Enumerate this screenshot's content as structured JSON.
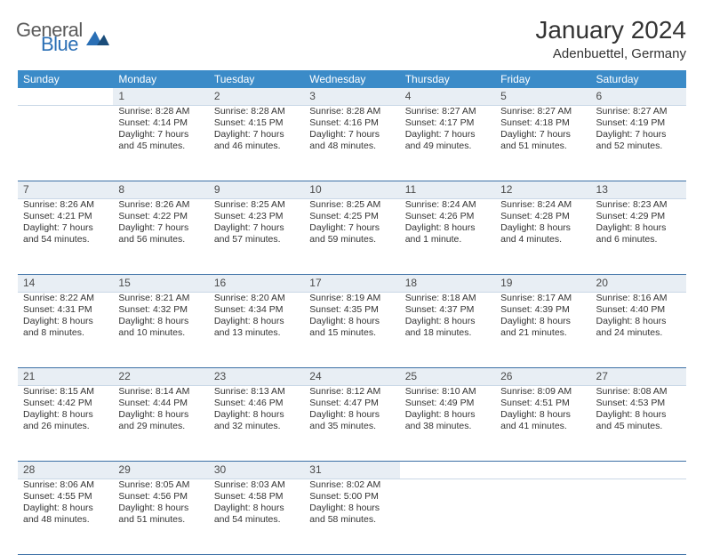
{
  "logo": {
    "word1": "General",
    "word2": "Blue",
    "color1": "#5a5a5a",
    "color2": "#2a6fb5"
  },
  "header": {
    "title": "January 2024",
    "location": "Adenbuettel, Germany"
  },
  "colors": {
    "header_bg": "#3b8bc8",
    "header_text": "#ffffff",
    "daynum_bg": "#e8eef4",
    "row_divider": "#3b6fa5",
    "cell_divider": "#c9d7e6",
    "text": "#333333"
  },
  "day_headers": [
    "Sunday",
    "Monday",
    "Tuesday",
    "Wednesday",
    "Thursday",
    "Friday",
    "Saturday"
  ],
  "weeks": [
    {
      "nums": [
        "",
        "1",
        "2",
        "3",
        "4",
        "5",
        "6"
      ],
      "cells": [
        [],
        [
          "Sunrise: 8:28 AM",
          "Sunset: 4:14 PM",
          "Daylight: 7 hours",
          "and 45 minutes."
        ],
        [
          "Sunrise: 8:28 AM",
          "Sunset: 4:15 PM",
          "Daylight: 7 hours",
          "and 46 minutes."
        ],
        [
          "Sunrise: 8:28 AM",
          "Sunset: 4:16 PM",
          "Daylight: 7 hours",
          "and 48 minutes."
        ],
        [
          "Sunrise: 8:27 AM",
          "Sunset: 4:17 PM",
          "Daylight: 7 hours",
          "and 49 minutes."
        ],
        [
          "Sunrise: 8:27 AM",
          "Sunset: 4:18 PM",
          "Daylight: 7 hours",
          "and 51 minutes."
        ],
        [
          "Sunrise: 8:27 AM",
          "Sunset: 4:19 PM",
          "Daylight: 7 hours",
          "and 52 minutes."
        ]
      ]
    },
    {
      "nums": [
        "7",
        "8",
        "9",
        "10",
        "11",
        "12",
        "13"
      ],
      "cells": [
        [
          "Sunrise: 8:26 AM",
          "Sunset: 4:21 PM",
          "Daylight: 7 hours",
          "and 54 minutes."
        ],
        [
          "Sunrise: 8:26 AM",
          "Sunset: 4:22 PM",
          "Daylight: 7 hours",
          "and 56 minutes."
        ],
        [
          "Sunrise: 8:25 AM",
          "Sunset: 4:23 PM",
          "Daylight: 7 hours",
          "and 57 minutes."
        ],
        [
          "Sunrise: 8:25 AM",
          "Sunset: 4:25 PM",
          "Daylight: 7 hours",
          "and 59 minutes."
        ],
        [
          "Sunrise: 8:24 AM",
          "Sunset: 4:26 PM",
          "Daylight: 8 hours",
          "and 1 minute."
        ],
        [
          "Sunrise: 8:24 AM",
          "Sunset: 4:28 PM",
          "Daylight: 8 hours",
          "and 4 minutes."
        ],
        [
          "Sunrise: 8:23 AM",
          "Sunset: 4:29 PM",
          "Daylight: 8 hours",
          "and 6 minutes."
        ]
      ]
    },
    {
      "nums": [
        "14",
        "15",
        "16",
        "17",
        "18",
        "19",
        "20"
      ],
      "cells": [
        [
          "Sunrise: 8:22 AM",
          "Sunset: 4:31 PM",
          "Daylight: 8 hours",
          "and 8 minutes."
        ],
        [
          "Sunrise: 8:21 AM",
          "Sunset: 4:32 PM",
          "Daylight: 8 hours",
          "and 10 minutes."
        ],
        [
          "Sunrise: 8:20 AM",
          "Sunset: 4:34 PM",
          "Daylight: 8 hours",
          "and 13 minutes."
        ],
        [
          "Sunrise: 8:19 AM",
          "Sunset: 4:35 PM",
          "Daylight: 8 hours",
          "and 15 minutes."
        ],
        [
          "Sunrise: 8:18 AM",
          "Sunset: 4:37 PM",
          "Daylight: 8 hours",
          "and 18 minutes."
        ],
        [
          "Sunrise: 8:17 AM",
          "Sunset: 4:39 PM",
          "Daylight: 8 hours",
          "and 21 minutes."
        ],
        [
          "Sunrise: 8:16 AM",
          "Sunset: 4:40 PM",
          "Daylight: 8 hours",
          "and 24 minutes."
        ]
      ]
    },
    {
      "nums": [
        "21",
        "22",
        "23",
        "24",
        "25",
        "26",
        "27"
      ],
      "cells": [
        [
          "Sunrise: 8:15 AM",
          "Sunset: 4:42 PM",
          "Daylight: 8 hours",
          "and 26 minutes."
        ],
        [
          "Sunrise: 8:14 AM",
          "Sunset: 4:44 PM",
          "Daylight: 8 hours",
          "and 29 minutes."
        ],
        [
          "Sunrise: 8:13 AM",
          "Sunset: 4:46 PM",
          "Daylight: 8 hours",
          "and 32 minutes."
        ],
        [
          "Sunrise: 8:12 AM",
          "Sunset: 4:47 PM",
          "Daylight: 8 hours",
          "and 35 minutes."
        ],
        [
          "Sunrise: 8:10 AM",
          "Sunset: 4:49 PM",
          "Daylight: 8 hours",
          "and 38 minutes."
        ],
        [
          "Sunrise: 8:09 AM",
          "Sunset: 4:51 PM",
          "Daylight: 8 hours",
          "and 41 minutes."
        ],
        [
          "Sunrise: 8:08 AM",
          "Sunset: 4:53 PM",
          "Daylight: 8 hours",
          "and 45 minutes."
        ]
      ]
    },
    {
      "nums": [
        "28",
        "29",
        "30",
        "31",
        "",
        "",
        ""
      ],
      "cells": [
        [
          "Sunrise: 8:06 AM",
          "Sunset: 4:55 PM",
          "Daylight: 8 hours",
          "and 48 minutes."
        ],
        [
          "Sunrise: 8:05 AM",
          "Sunset: 4:56 PM",
          "Daylight: 8 hours",
          "and 51 minutes."
        ],
        [
          "Sunrise: 8:03 AM",
          "Sunset: 4:58 PM",
          "Daylight: 8 hours",
          "and 54 minutes."
        ],
        [
          "Sunrise: 8:02 AM",
          "Sunset: 5:00 PM",
          "Daylight: 8 hours",
          "and 58 minutes."
        ],
        [],
        [],
        []
      ]
    }
  ]
}
